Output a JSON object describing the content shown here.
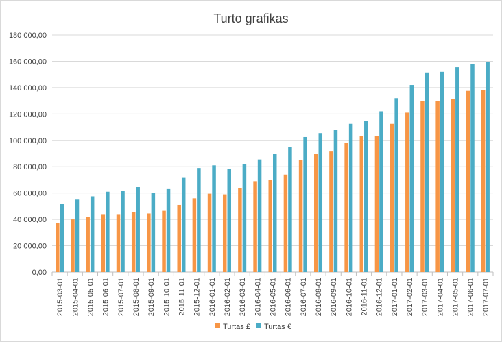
{
  "chart_data": {
    "type": "bar",
    "title": "Turto grafikas",
    "xlabel": "",
    "ylabel": "",
    "ylim": [
      0,
      180000
    ],
    "y_ticks": [
      0,
      20000,
      40000,
      60000,
      80000,
      100000,
      120000,
      140000,
      160000,
      180000
    ],
    "y_tick_labels": [
      "0,00",
      "20 000,00",
      "40 000,00",
      "60 000,00",
      "80 000,00",
      "100 000,00",
      "120 000,00",
      "140 000,00",
      "160 000,00",
      "180 000,00"
    ],
    "grid": true,
    "legend_position": "bottom",
    "categories": [
      "2015-03-01",
      "2015-04-01",
      "2015-05-01",
      "2015-06-01",
      "2015-07-01",
      "2015-08-01",
      "2015-09-01",
      "2015-10-01",
      "2015-11-01",
      "2015-12-01",
      "2016-01-01",
      "2016-02-01",
      "2016-03-01",
      "2016-04-01",
      "2016-05-01",
      "2016-06-01",
      "2016-07-01",
      "2016-08-01",
      "2016-09-01",
      "2016-10-01",
      "2016-11-01",
      "2016-12-01",
      "2017-01-01",
      "2017-02-01",
      "2017-03-01",
      "2017-04-01",
      "2017-05-01",
      "2017-06-01",
      "2017-07-01"
    ],
    "series": [
      {
        "name": "Turtas £",
        "color": "#f79646",
        "values": [
          37000,
          40000,
          42000,
          44000,
          44000,
          45500,
          44500,
          46500,
          51000,
          56000,
          59500,
          59000,
          63500,
          69000,
          70000,
          74000,
          85000,
          89500,
          91500,
          98000,
          103500,
          103500,
          112500,
          121000,
          130000,
          130000,
          131500,
          137500,
          138000
        ]
      },
      {
        "name": "Turtas €",
        "color": "#4bacc6",
        "values": [
          51500,
          55000,
          57500,
          61000,
          61500,
          64500,
          60000,
          63000,
          72000,
          79000,
          81000,
          78500,
          82000,
          85500,
          90000,
          95000,
          102500,
          105500,
          108000,
          112500,
          114500,
          122000,
          132000,
          142000,
          151500,
          152000,
          155500,
          158000,
          159500
        ]
      }
    ]
  }
}
